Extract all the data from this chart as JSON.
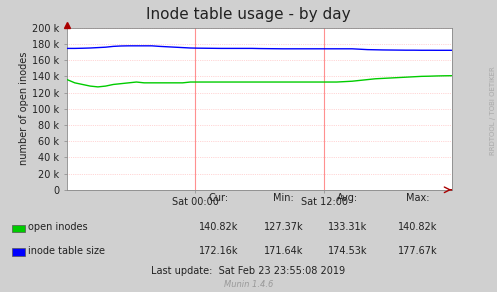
{
  "title": "Inode table usage - by day",
  "ylabel": "number of open inodes",
  "background_color": "#d0d0d0",
  "plot_bg_color": "#ffffff",
  "grid_color": "#ffb0b0",
  "x_ticks_labels": [
    "Sat 00:00",
    "Sat 12:00"
  ],
  "x_ticks_pos": [
    0.333,
    0.667
  ],
  "ylim": [
    0,
    200000
  ],
  "yticks": [
    0,
    20000,
    40000,
    60000,
    80000,
    100000,
    120000,
    140000,
    160000,
    180000,
    200000
  ],
  "ytick_labels": [
    "0",
    "20 k",
    "40 k",
    "60 k",
    "80 k",
    "100 k",
    "120 k",
    "140 k",
    "160 k",
    "180 k",
    "200 k"
  ],
  "open_inodes_color": "#00cc00",
  "inode_table_color": "#0000ff",
  "vline_color": "#ff9090",
  "arrow_color": "#aa0000",
  "legend_labels": [
    "open inodes",
    "inode table size"
  ],
  "legend_cur": [
    "140.82k",
    "172.16k"
  ],
  "legend_min": [
    "127.37k",
    "171.64k"
  ],
  "legend_avg": [
    "133.31k",
    "174.53k"
  ],
  "legend_max": [
    "140.82k",
    "177.67k"
  ],
  "last_update": "Last update:  Sat Feb 23 23:55:08 2019",
  "munin_label": "Munin 1.4.6",
  "right_label": "RRDTOOL / TOBI OETIKER",
  "title_fontsize": 11,
  "axis_fontsize": 7,
  "legend_fontsize": 7,
  "open_inodes_data_x": [
    0.0,
    0.02,
    0.04,
    0.06,
    0.08,
    0.1,
    0.12,
    0.14,
    0.16,
    0.18,
    0.2,
    0.22,
    0.24,
    0.26,
    0.28,
    0.3,
    0.32,
    0.34,
    0.36,
    0.38,
    0.4,
    0.42,
    0.44,
    0.46,
    0.48,
    0.5,
    0.52,
    0.54,
    0.56,
    0.58,
    0.6,
    0.62,
    0.64,
    0.66,
    0.68,
    0.7,
    0.72,
    0.74,
    0.76,
    0.78,
    0.8,
    0.82,
    0.84,
    0.86,
    0.88,
    0.9,
    0.92,
    0.94,
    0.96,
    0.98,
    1.0
  ],
  "open_inodes_data_y": [
    136000,
    132000,
    130000,
    128000,
    127000,
    128000,
    130000,
    131000,
    132000,
    133000,
    132000,
    132000,
    132000,
    132000,
    132000,
    132000,
    133000,
    133000,
    133000,
    133000,
    133000,
    133000,
    133000,
    133000,
    133000,
    133000,
    133000,
    133000,
    133000,
    133000,
    133000,
    133000,
    133000,
    133000,
    133000,
    133000,
    133500,
    134000,
    135000,
    136000,
    137000,
    137500,
    138000,
    138500,
    139000,
    139500,
    140000,
    140200,
    140500,
    140700,
    140820
  ],
  "inode_table_data_x": [
    0.0,
    0.02,
    0.04,
    0.06,
    0.08,
    0.1,
    0.12,
    0.14,
    0.16,
    0.18,
    0.2,
    0.22,
    0.24,
    0.26,
    0.28,
    0.3,
    0.32,
    0.34,
    0.36,
    0.38,
    0.4,
    0.42,
    0.44,
    0.46,
    0.48,
    0.5,
    0.52,
    0.54,
    0.56,
    0.58,
    0.6,
    0.62,
    0.64,
    0.66,
    0.68,
    0.7,
    0.72,
    0.74,
    0.76,
    0.78,
    0.8,
    0.82,
    0.84,
    0.86,
    0.88,
    0.9,
    0.92,
    0.94,
    0.96,
    0.98,
    1.0
  ],
  "inode_table_data_y": [
    174500,
    174500,
    174700,
    175000,
    175500,
    176000,
    177000,
    177500,
    177670,
    177670,
    177670,
    177670,
    177000,
    176500,
    176000,
    175500,
    175000,
    174800,
    174700,
    174600,
    174500,
    174500,
    174500,
    174500,
    174500,
    174300,
    174200,
    174100,
    174000,
    174000,
    174000,
    174000,
    174000,
    174000,
    174000,
    174000,
    174000,
    174000,
    173500,
    173000,
    172800,
    172600,
    172500,
    172400,
    172300,
    172300,
    172200,
    172200,
    172160,
    172160,
    172160
  ]
}
